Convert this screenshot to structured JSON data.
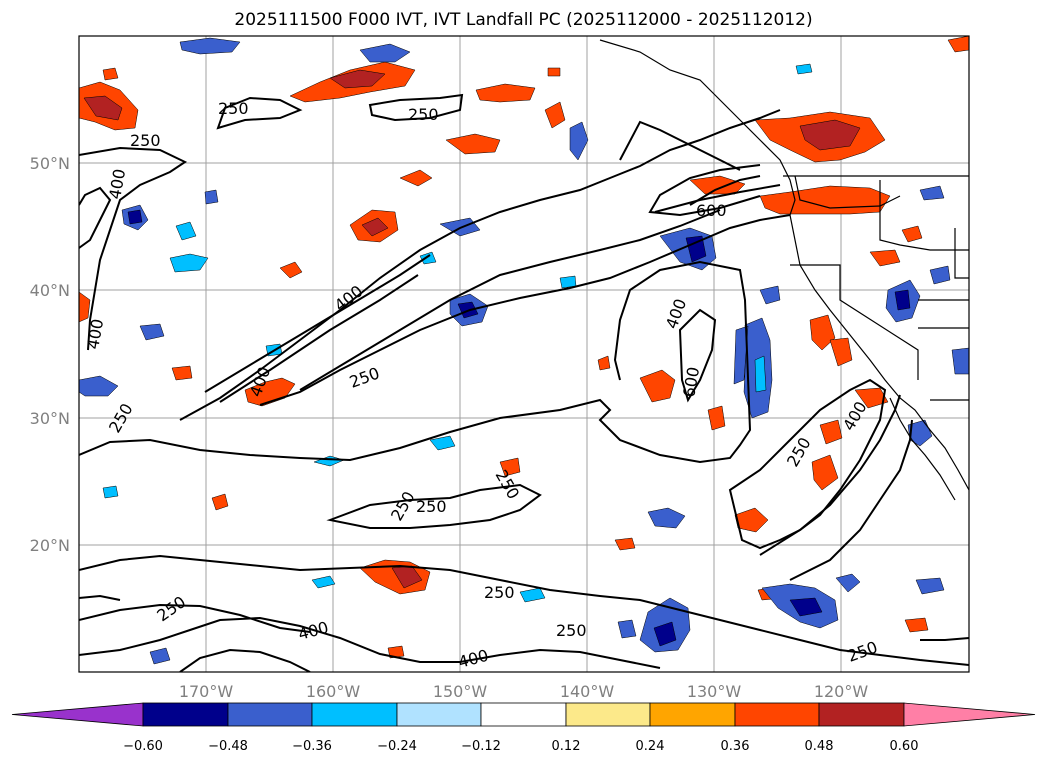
{
  "title": "2025111500 F000 IVT, IVT Landfall PC (2025112000 - 2025112012)",
  "map": {
    "lat_labels": [
      "50°N",
      "40°N",
      "30°N",
      "20°N"
    ],
    "lon_labels": [
      "170°W",
      "160°W",
      "150°W",
      "140°W",
      "130°W",
      "120°W"
    ],
    "contour_labels": [
      "250",
      "250",
      "250",
      "400",
      "400",
      "400",
      "250",
      "400",
      "250",
      "600",
      "400",
      "600",
      "250",
      "400",
      "250",
      "250",
      "250",
      "250",
      "400",
      "400",
      "250",
      "250",
      "250"
    ]
  },
  "colorbar": {
    "ticks": [
      "−0.60",
      "−0.48",
      "−0.36",
      "−0.24",
      "−0.12",
      "0.12",
      "0.24",
      "0.36",
      "0.48",
      "0.60"
    ],
    "colors": [
      "#9932cc",
      "#00008b",
      "#3a5fcd",
      "#00bfff",
      "#b0e2ff",
      "#ffffff",
      "#fce98a",
      "#ffa500",
      "#ff4500",
      "#b22222",
      "#ff7fa6"
    ]
  }
}
